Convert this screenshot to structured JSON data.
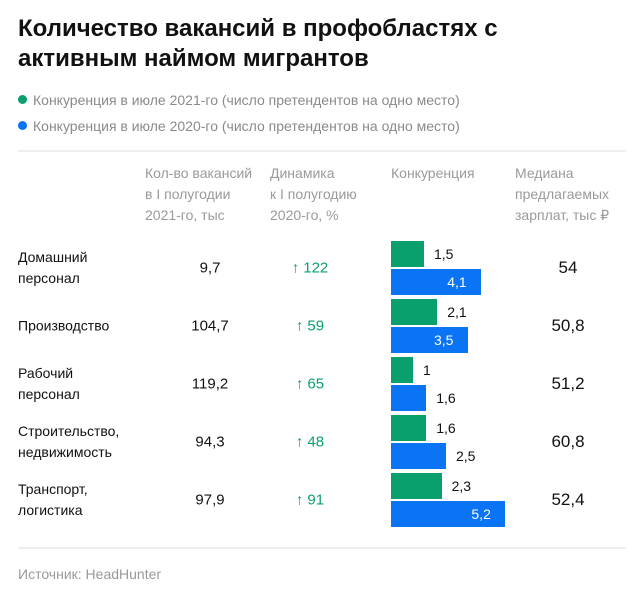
{
  "title": "Количество вакансий в профобластях с активным наймом мигрантов",
  "legend": [
    {
      "label": "Конкуренция в июле 2021-го (число претендентов на одно место)",
      "color": "#0aa06e"
    },
    {
      "label": "Конкуренция в июле 2020-го (число претендентов на одно место)",
      "color": "#0a74f5"
    }
  ],
  "headers": {
    "vacancies": "Кол-во вакансий\nв I полугодии\n2021-го, тыс",
    "dynamics": "Динамика\nк I полугодию\n2020-го, %",
    "competition": "Конкуренция",
    "salary": "Медиана\nпредлагаемых\nзарплат, тыс ₽"
  },
  "chart_data": {
    "type": "bar",
    "orientation": "horizontal",
    "categories": [
      "Домашний\nперсонал",
      "Производство",
      "Рабочий\nперсонал",
      "Строительство,\nнедвижимость",
      "Транспорт,\nлогистика"
    ],
    "series": [
      {
        "name": "Конкуренция в июле 2021-го (число претендентов на одно место)",
        "values": [
          "1,5",
          "2,1",
          "1",
          "1,6",
          "2,3"
        ],
        "numeric": [
          1.5,
          2.1,
          1,
          1.6,
          2.3
        ],
        "color": "#0aa06e"
      },
      {
        "name": "Конкуренция в июле 2020-го (число претендентов на одно место)",
        "values": [
          "4,1",
          "3,5",
          "1,6",
          "2,5",
          "5,2"
        ],
        "numeric": [
          4.1,
          3.5,
          1.6,
          2.5,
          5.2
        ],
        "color": "#0a74f5"
      }
    ],
    "vacancies": [
      "9,7",
      "104,7",
      "119,2",
      "94,3",
      "97,9"
    ],
    "dynamics": [
      "122",
      "59",
      "65",
      "48",
      "91"
    ],
    "dynamics_arrow": "↑",
    "salary": [
      "54",
      "50,8",
      "51,2",
      "60,8",
      "52,4"
    ],
    "grid": false
  },
  "source": "Источник:  HeadHunter"
}
